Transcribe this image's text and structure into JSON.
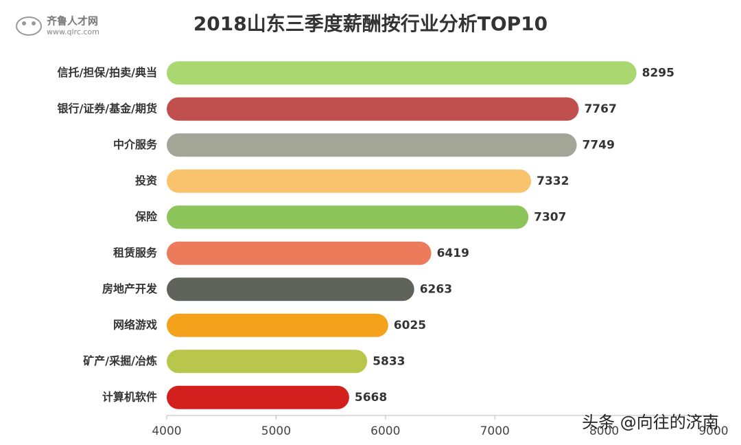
{
  "logo": {
    "name": "齐鲁人才网",
    "url": "www.qlrc.com"
  },
  "watermark": "头条 @向往的济南",
  "chart_data": {
    "type": "bar",
    "orientation": "horizontal",
    "title": "2018山东三季度薪酬按行业分析TOP10",
    "categories": [
      "信托/担保/拍卖/典当",
      "银行/证券/基金/期货",
      "中介服务",
      "投资",
      "保险",
      "租赁服务",
      "房地产开发",
      "网络游戏",
      "矿产/采掘/冶炼",
      "计算机软件"
    ],
    "values": [
      8295,
      7767,
      7749,
      7332,
      7307,
      6419,
      6263,
      6025,
      5833,
      5668
    ],
    "colors": [
      "#a9d770",
      "#c0504d",
      "#a3a596",
      "#f9c36e",
      "#8dc55b",
      "#ec7b5c",
      "#606359",
      "#f4a21c",
      "#b9c64c",
      "#d41f1f"
    ],
    "xlim": [
      4000,
      9000
    ],
    "xticks": [
      4000,
      5000,
      6000,
      7000,
      8000,
      9000
    ],
    "grid": false
  }
}
